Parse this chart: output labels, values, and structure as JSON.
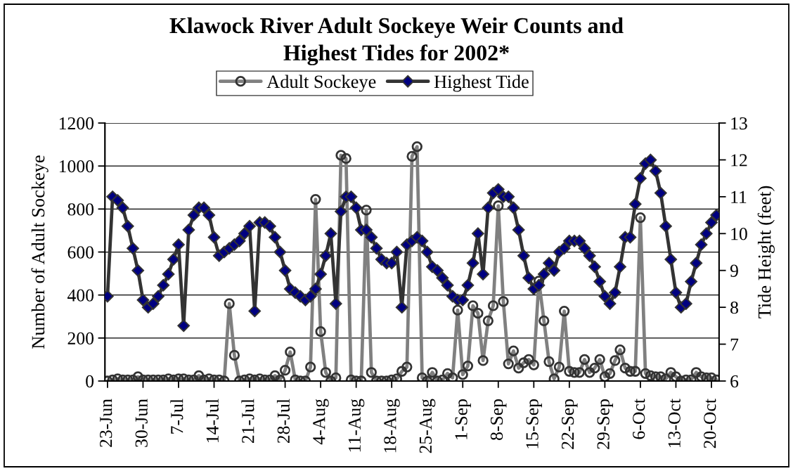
{
  "chart_data": {
    "type": "line",
    "title": "Klawock River Adult Sockeye Weir Counts and\nHighest Tides for 2002*",
    "ylabel": "Number of Adult Sockeye",
    "y2label": "Tide Height (feet)",
    "x": [
      "2002-06-23",
      "2002-06-24",
      "2002-06-25",
      "2002-06-26",
      "2002-06-27",
      "2002-06-28",
      "2002-06-29",
      "2002-06-30",
      "2002-07-01",
      "2002-07-02",
      "2002-07-03",
      "2002-07-04",
      "2002-07-05",
      "2002-07-06",
      "2002-07-07",
      "2002-07-08",
      "2002-07-09",
      "2002-07-10",
      "2002-07-11",
      "2002-07-12",
      "2002-07-13",
      "2002-07-14",
      "2002-07-15",
      "2002-07-16",
      "2002-07-17",
      "2002-07-18",
      "2002-07-19",
      "2002-07-20",
      "2002-07-21",
      "2002-07-22",
      "2002-07-23",
      "2002-07-24",
      "2002-07-25",
      "2002-07-26",
      "2002-07-27",
      "2002-07-28",
      "2002-07-29",
      "2002-07-30",
      "2002-07-31",
      "2002-08-01",
      "2002-08-02",
      "2002-08-03",
      "2002-08-04",
      "2002-08-05",
      "2002-08-06",
      "2002-08-07",
      "2002-08-08",
      "2002-08-09",
      "2002-08-10",
      "2002-08-11",
      "2002-08-12",
      "2002-08-13",
      "2002-08-14",
      "2002-08-15",
      "2002-08-16",
      "2002-08-17",
      "2002-08-18",
      "2002-08-19",
      "2002-08-20",
      "2002-08-21",
      "2002-08-22",
      "2002-08-23",
      "2002-08-24",
      "2002-08-25",
      "2002-08-26",
      "2002-08-27",
      "2002-08-28",
      "2002-08-29",
      "2002-08-30",
      "2002-08-31",
      "2002-09-01",
      "2002-09-02",
      "2002-09-03",
      "2002-09-04",
      "2002-09-05",
      "2002-09-06",
      "2002-09-07",
      "2002-09-08",
      "2002-09-09",
      "2002-09-10",
      "2002-09-11",
      "2002-09-12",
      "2002-09-13",
      "2002-09-14",
      "2002-09-15",
      "2002-09-16",
      "2002-09-17",
      "2002-09-18",
      "2002-09-19",
      "2002-09-20",
      "2002-09-21",
      "2002-09-22",
      "2002-09-23",
      "2002-09-24",
      "2002-09-25",
      "2002-09-26",
      "2002-09-27",
      "2002-09-28",
      "2002-09-29",
      "2002-09-30",
      "2002-10-01",
      "2002-10-02",
      "2002-10-03",
      "2002-10-04",
      "2002-10-05",
      "2002-10-06",
      "2002-10-07",
      "2002-10-08",
      "2002-10-09",
      "2002-10-10",
      "2002-10-11",
      "2002-10-12",
      "2002-10-13",
      "2002-10-14",
      "2002-10-15",
      "2002-10-16",
      "2002-10-17",
      "2002-10-18",
      "2002-10-19",
      "2002-10-20",
      "2002-10-21"
    ],
    "series": [
      {
        "name": "Adult Sockeye",
        "color": "#808080",
        "marker": "circle",
        "values": [
          0,
          5,
          10,
          5,
          5,
          5,
          20,
          5,
          5,
          5,
          5,
          5,
          10,
          5,
          10,
          10,
          5,
          5,
          25,
          5,
          10,
          5,
          5,
          0,
          360,
          120,
          0,
          5,
          10,
          5,
          10,
          5,
          5,
          25,
          5,
          50,
          135,
          5,
          0,
          0,
          65,
          845,
          230,
          40,
          0,
          15,
          1050,
          1035,
          5,
          0,
          0,
          795,
          40,
          0,
          0,
          0,
          5,
          10,
          45,
          65,
          1045,
          1090,
          15,
          0,
          40,
          0,
          5,
          35,
          15,
          330,
          30,
          70,
          350,
          315,
          95,
          280,
          350,
          815,
          370,
          80,
          140,
          60,
          85,
          100,
          75,
          465,
          280,
          90,
          10,
          65,
          325,
          45,
          40,
          40,
          100,
          40,
          60,
          100,
          20,
          35,
          95,
          145,
          60,
          45,
          45,
          760,
          35,
          25,
          20,
          20,
          10,
          40,
          20,
          0,
          5,
          5,
          40,
          20,
          15,
          15,
          5
        ]
      },
      {
        "name": "Highest Tide",
        "color": "#333333",
        "marker": "diamond",
        "axis": "y2",
        "values": [
          8.3,
          11.0,
          10.9,
          10.7,
          10.2,
          9.6,
          9.0,
          8.2,
          8.0,
          8.1,
          8.3,
          8.6,
          8.9,
          9.3,
          9.7,
          7.5,
          10.1,
          10.5,
          10.7,
          10.7,
          10.5,
          9.9,
          9.4,
          9.5,
          9.6,
          9.7,
          9.8,
          10.0,
          10.2,
          7.9,
          10.3,
          10.3,
          10.2,
          9.9,
          9.5,
          9.0,
          8.5,
          8.4,
          8.3,
          8.2,
          8.3,
          8.5,
          8.9,
          9.4,
          10.0,
          8.1,
          10.6,
          11.0,
          11.0,
          10.7,
          10.1,
          10.1,
          9.9,
          9.6,
          9.3,
          9.2,
          9.2,
          9.5,
          8.0,
          9.7,
          9.8,
          9.9,
          9.8,
          9.5,
          9.1,
          9.0,
          8.8,
          8.6,
          8.3,
          8.2,
          8.2,
          8.6,
          9.2,
          10.0,
          8.9,
          10.7,
          11.1,
          11.2,
          11.0,
          11.0,
          10.7,
          10.1,
          9.4,
          8.8,
          8.5,
          8.6,
          8.9,
          9.2,
          9.0,
          9.5,
          9.6,
          9.8,
          9.8,
          9.8,
          9.6,
          9.4,
          9.1,
          8.7,
          8.3,
          8.1,
          8.4,
          9.1,
          9.9,
          9.9,
          10.8,
          11.5,
          11.9,
          12.0,
          11.7,
          11.1,
          10.2,
          9.3,
          8.4,
          8.0,
          8.1,
          8.7,
          9.2,
          9.7,
          10.0,
          10.3,
          10.5
        ]
      }
    ],
    "xlim": [
      "2002-06-22T12:00",
      "2002-10-21T12:00"
    ],
    "xticks": [
      {
        "value": "2002-06-23",
        "label": "23-Jun"
      },
      {
        "value": "2002-06-30",
        "label": "30-Jun"
      },
      {
        "value": "2002-07-07",
        "label": "7-Jul"
      },
      {
        "value": "2002-07-14",
        "label": "14-Jul"
      },
      {
        "value": "2002-07-21",
        "label": "21-Jul"
      },
      {
        "value": "2002-07-28",
        "label": "28-Jul"
      },
      {
        "value": "2002-08-04",
        "label": "4-Aug"
      },
      {
        "value": "2002-08-11",
        "label": "11-Aug"
      },
      {
        "value": "2002-08-18",
        "label": "18-Aug"
      },
      {
        "value": "2002-08-25",
        "label": "25-Aug"
      },
      {
        "value": "2002-09-01",
        "label": "1-Sep"
      },
      {
        "value": "2002-09-08",
        "label": "8-Sep"
      },
      {
        "value": "2002-09-15",
        "label": "15-Sep"
      },
      {
        "value": "2002-09-22",
        "label": "22-Sep"
      },
      {
        "value": "2002-09-29",
        "label": "29-Sep"
      },
      {
        "value": "2002-10-06",
        "label": "6-Oct"
      },
      {
        "value": "2002-10-13",
        "label": "13-Oct"
      },
      {
        "value": "2002-10-20",
        "label": "20-Oct"
      }
    ],
    "ylim": [
      0,
      1200
    ],
    "yticks": [
      0,
      200,
      400,
      600,
      800,
      1000,
      1200
    ],
    "y2lim": [
      6,
      13
    ],
    "y2ticks": [
      6,
      7,
      8,
      9,
      10,
      11,
      12,
      13
    ],
    "grid": "y",
    "legend": "top",
    "line_style": "solid"
  }
}
